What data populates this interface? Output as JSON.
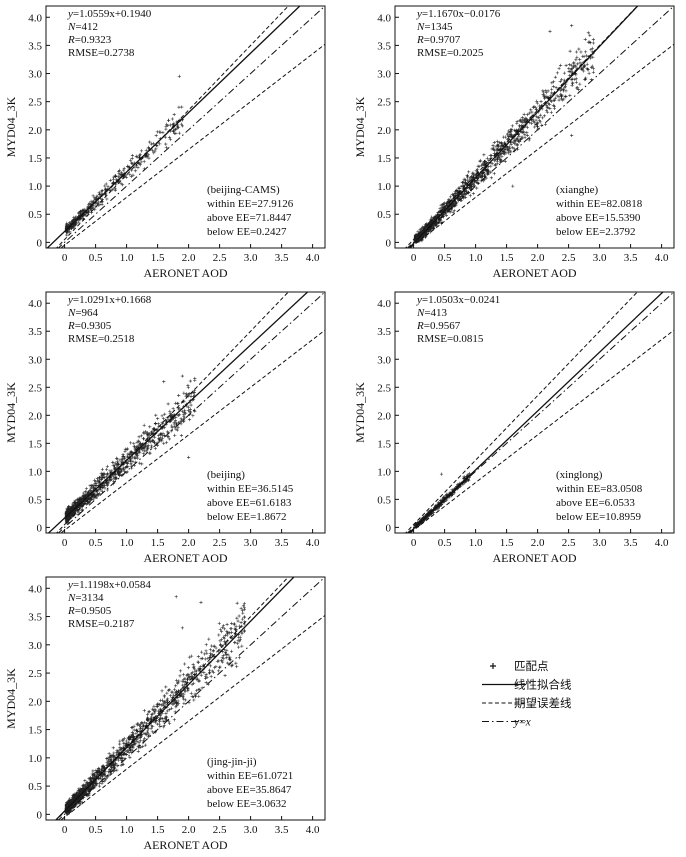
{
  "chart_data": [
    {
      "type": "scatter",
      "site": "beijing-CAMS",
      "site_label": "(beijing-CAMS)",
      "xlabel": "AERONET AOD",
      "ylabel": "MYD04_3K",
      "xlim": [
        -0.3,
        4.2
      ],
      "ylim": [
        -0.1,
        4.2
      ],
      "xticks": [
        "0",
        "0.5",
        "1.0",
        "1.5",
        "2.0",
        "2.5",
        "3.0",
        "3.5",
        "4.0"
      ],
      "yticks": [
        "0",
        "0.5",
        "1.0",
        "1.5",
        "2.0",
        "2.5",
        "3.0",
        "3.5",
        "4.0"
      ],
      "fit": {
        "slope": 1.0559,
        "intercept": 0.194
      },
      "stats": {
        "equation": "y=1.0559x+0.1940",
        "n": "N=412",
        "r": "R=0.9323",
        "rmse": "RMSE=0.2738",
        "within": "within EE=27.9126",
        "above": "above EE=71.8447",
        "below": "below EE=0.2427"
      },
      "points": {
        "n": 412,
        "seed": 11,
        "xmax": 1.9,
        "bias": 0.26,
        "spread": 0.12,
        "xscale": 0.42
      },
      "outliers": [
        [
          1.85,
          2.95
        ]
      ]
    },
    {
      "type": "scatter",
      "site": "xianghe",
      "site_label": "(xianghe)",
      "xlabel": "AERONET AOD",
      "ylabel": "MYD04_3K",
      "xlim": [
        -0.3,
        4.2
      ],
      "ylim": [
        -0.1,
        4.2
      ],
      "xticks": [
        "0",
        "0.5",
        "1.0",
        "1.5",
        "2.0",
        "2.5",
        "3.0",
        "3.5",
        "4.0"
      ],
      "yticks": [
        "0",
        "0.5",
        "1.0",
        "1.5",
        "2.0",
        "2.5",
        "3.0",
        "3.5",
        "4.0"
      ],
      "fit": {
        "slope": 1.167,
        "intercept": -0.0176
      },
      "stats": {
        "equation": "y=1.1670x−0.0176",
        "n": "N=1345",
        "r": "R=0.9707",
        "rmse": "RMSE=0.2025",
        "within": "within EE=82.0818",
        "above": "above EE=15.5390",
        "below": "below EE=2.3792"
      },
      "points": {
        "n": 1345,
        "seed": 23,
        "xmax": 2.9,
        "bias": 0.12,
        "spread": 0.14,
        "xscale": 0.55
      },
      "outliers": [
        [
          2.55,
          3.85
        ],
        [
          2.2,
          3.75
        ],
        [
          1.6,
          1.0
        ],
        [
          2.55,
          1.9
        ]
      ]
    },
    {
      "type": "scatter",
      "site": "beijing",
      "site_label": "(beijing)",
      "xlabel": "AERONET AOD",
      "ylabel": "MYD04_3K",
      "xlim": [
        -0.3,
        4.2
      ],
      "ylim": [
        -0.1,
        4.2
      ],
      "xticks": [
        "0",
        "0.5",
        "1.0",
        "1.5",
        "2.0",
        "2.5",
        "3.0",
        "3.5",
        "4.0"
      ],
      "yticks": [
        "0",
        "0.5",
        "1.0",
        "1.5",
        "2.0",
        "2.5",
        "3.0",
        "3.5",
        "4.0"
      ],
      "fit": {
        "slope": 1.0291,
        "intercept": 0.1668
      },
      "stats": {
        "equation": "y=1.0291x+0.1668",
        "n": "N=964",
        "r": "R=0.9305",
        "rmse": "RMSE=0.2518",
        "within": "within EE=36.5145",
        "above": "above EE=61.6183",
        "below": "below EE=1.8672"
      },
      "points": {
        "n": 964,
        "seed": 37,
        "xmax": 2.1,
        "bias": 0.2,
        "spread": 0.16,
        "xscale": 0.45
      },
      "outliers": [
        [
          1.6,
          2.6
        ],
        [
          1.9,
          2.7
        ],
        [
          2.0,
          1.25
        ]
      ]
    },
    {
      "type": "scatter",
      "site": "xinglong",
      "site_label": "(xinglong)",
      "xlabel": "AERONET AOD",
      "ylabel": "MYD04_3K",
      "xlim": [
        -0.3,
        4.2
      ],
      "ylim": [
        -0.1,
        4.2
      ],
      "xticks": [
        "0",
        "0.5",
        "1.0",
        "1.5",
        "2.0",
        "2.5",
        "3.0",
        "3.5",
        "4.0"
      ],
      "yticks": [
        "0",
        "0.5",
        "1.0",
        "1.5",
        "2.0",
        "2.5",
        "3.0",
        "3.5",
        "4.0"
      ],
      "fit": {
        "slope": 1.0503,
        "intercept": -0.0241
      },
      "stats": {
        "equation": "y=1.0503x−0.0241",
        "n": "N=413",
        "r": "R=0.9567",
        "rmse": "RMSE=0.0815",
        "within": "within EE=83.0508",
        "above": "above EE=6.0533",
        "below": "below EE=10.8959"
      },
      "points": {
        "n": 413,
        "seed": 53,
        "xmax": 0.9,
        "bias": 0.0,
        "spread": 0.05,
        "xscale": 0.18
      },
      "outliers": [
        [
          0.45,
          0.95
        ]
      ]
    },
    {
      "type": "scatter",
      "site": "jing-jin-ji",
      "site_label": "(jing-jin-ji)",
      "xlabel": "AERONET AOD",
      "ylabel": "MYD04_3K",
      "xlim": [
        -0.3,
        4.2
      ],
      "ylim": [
        -0.1,
        4.2
      ],
      "xticks": [
        "0",
        "0.5",
        "1.0",
        "1.5",
        "2.0",
        "2.5",
        "3.0",
        "3.5",
        "4.0"
      ],
      "yticks": [
        "0",
        "0.5",
        "1.0",
        "1.5",
        "2.0",
        "2.5",
        "3.0",
        "3.5",
        "4.0"
      ],
      "fit": {
        "slope": 1.1198,
        "intercept": 0.0584
      },
      "stats": {
        "equation": "y=1.1198x+0.0584",
        "n": "N=3134",
        "r": "R=0.9505",
        "rmse": "RMSE=0.2187",
        "within": "within EE=61.0721",
        "above": "above EE=35.8647",
        "below": "below EE=3.0632"
      },
      "points": {
        "n": 3134,
        "seed": 71,
        "xmax": 2.9,
        "bias": 0.13,
        "spread": 0.16,
        "xscale": 0.5
      },
      "outliers": [
        [
          1.8,
          3.85
        ],
        [
          2.2,
          3.75
        ],
        [
          1.9,
          3.3
        ],
        [
          2.05,
          2.8
        ]
      ]
    }
  ],
  "legend": {
    "items": [
      {
        "label": "匹配点",
        "style": "marker"
      },
      {
        "label": "线性拟合线",
        "style": "solid"
      },
      {
        "label": "期望误差线",
        "style": "dashed"
      },
      {
        "label": "y=x",
        "style": "dashdot"
      }
    ]
  }
}
